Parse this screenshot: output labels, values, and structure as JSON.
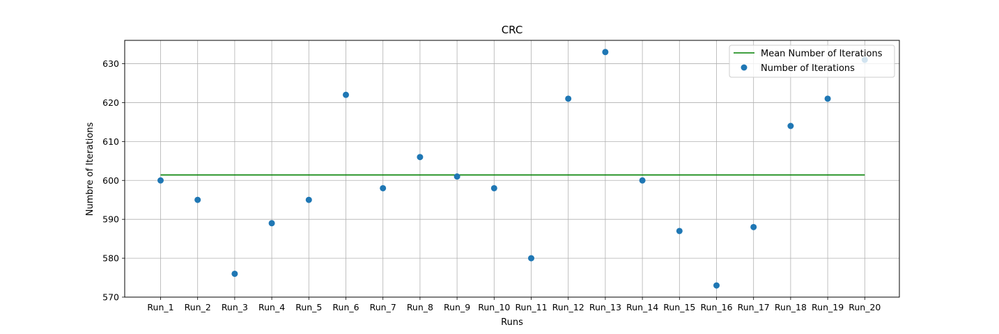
{
  "chart_data": {
    "type": "scatter",
    "title": "CRC",
    "xlabel": "Runs",
    "ylabel": "Numbre of Iterations",
    "categories": [
      "Run_1",
      "Run_2",
      "Run_3",
      "Run_4",
      "Run_5",
      "Run_6",
      "Run_7",
      "Run_8",
      "Run_9",
      "Run_10",
      "Run_11",
      "Run_12",
      "Run_13",
      "Run_14",
      "Run_15",
      "Run_16",
      "Run_17",
      "Run_18",
      "Run_19",
      "Run_20"
    ],
    "series": [
      {
        "name": "Number of Iterations",
        "kind": "scatter",
        "color": "#1f77b4",
        "values": [
          600,
          595,
          576,
          589,
          595,
          622,
          598,
          606,
          601,
          598,
          580,
          621,
          633,
          600,
          587,
          573,
          588,
          614,
          621,
          631
        ]
      },
      {
        "name": "Mean Number of Iterations",
        "kind": "line",
        "color": "#008000",
        "value": 601.4
      }
    ],
    "ylim": [
      570,
      636
    ],
    "yticks": [
      570,
      580,
      590,
      600,
      610,
      620,
      630
    ],
    "grid": true,
    "legend_position": "top-right"
  },
  "colors": {
    "grid": "#b0b0b0",
    "axes": "#000000",
    "scatter": "#1f77b4",
    "mean_line": "#008000"
  }
}
